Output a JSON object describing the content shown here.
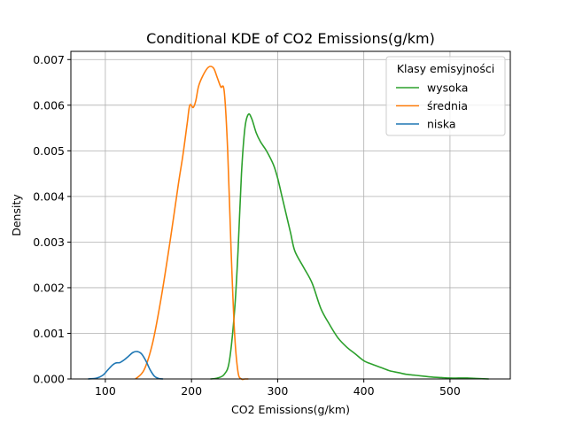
{
  "chart_data": {
    "type": "line",
    "title": "Conditional KDE of CO2 Emissions(g/km)",
    "xlabel": "CO2 Emissions(g/km)",
    "ylabel": "Density",
    "xlim": [
      60,
      570
    ],
    "ylim": [
      0,
      0.00718
    ],
    "xticks": [
      100,
      200,
      300,
      400,
      500
    ],
    "xtick_labels": [
      "100",
      "200",
      "300",
      "400",
      "500"
    ],
    "yticks": [
      0,
      0.001,
      0.002,
      0.003,
      0.004,
      0.005,
      0.006,
      0.007
    ],
    "ytick_labels": [
      "0.000",
      "0.001",
      "0.002",
      "0.003",
      "0.004",
      "0.005",
      "0.006",
      "0.007"
    ],
    "grid": true,
    "legend": {
      "title": "Klasy emisyjności",
      "placement": "top-right"
    },
    "series": [
      {
        "name": "wysoka",
        "color": "#2ca02c",
        "x": [
          222,
          230,
          238,
          244,
          250,
          254,
          258,
          262,
          266,
          270,
          275,
          280,
          287,
          295,
          300,
          305,
          310,
          315,
          320,
          330,
          340,
          350,
          360,
          370,
          380,
          390,
          400,
          410,
          420,
          430,
          440,
          450,
          460,
          470,
          480,
          490,
          500,
          510,
          520,
          530,
          545
        ],
        "y": [
          0.0,
          2e-05,
          0.0001,
          0.0004,
          0.0015,
          0.0028,
          0.0045,
          0.0055,
          0.0058,
          0.0057,
          0.0054,
          0.0052,
          0.005,
          0.0047,
          0.0044,
          0.004,
          0.0036,
          0.0032,
          0.0028,
          0.00245,
          0.0021,
          0.00155,
          0.0012,
          0.0009,
          0.0007,
          0.00055,
          0.0004,
          0.00032,
          0.00025,
          0.00018,
          0.00014,
          0.0001,
          8e-05,
          6e-05,
          4e-05,
          3e-05,
          2e-05,
          2e-05,
          2e-05,
          1e-05,
          0.0
        ]
      },
      {
        "name": "średnia",
        "color": "#ff7f0e",
        "x": [
          135,
          145,
          155,
          165,
          175,
          185,
          190,
          195,
          198,
          202,
          205,
          208,
          212,
          218,
          222,
          226,
          230,
          234,
          238,
          242,
          246,
          250,
          254,
          258,
          262,
          266
        ],
        "y": [
          0.0,
          0.0002,
          0.0008,
          0.0018,
          0.003,
          0.0043,
          0.0049,
          0.0056,
          0.006,
          0.00595,
          0.0061,
          0.0064,
          0.0066,
          0.0068,
          0.00685,
          0.0068,
          0.0066,
          0.0064,
          0.0063,
          0.005,
          0.0028,
          0.001,
          0.00015,
          0.0,
          0.0,
          0.0
        ]
      },
      {
        "name": "niska",
        "color": "#1f77b4",
        "x": [
          80,
          90,
          97,
          103,
          108,
          112,
          117,
          122,
          127,
          132,
          137,
          142,
          147,
          152,
          157,
          162,
          167
        ],
        "y": [
          0.0,
          2e-05,
          8e-05,
          0.0002,
          0.0003,
          0.00035,
          0.00036,
          0.00042,
          0.0005,
          0.00058,
          0.0006,
          0.00055,
          0.0004,
          0.0002,
          6e-05,
          1e-05,
          0.0
        ]
      }
    ]
  }
}
